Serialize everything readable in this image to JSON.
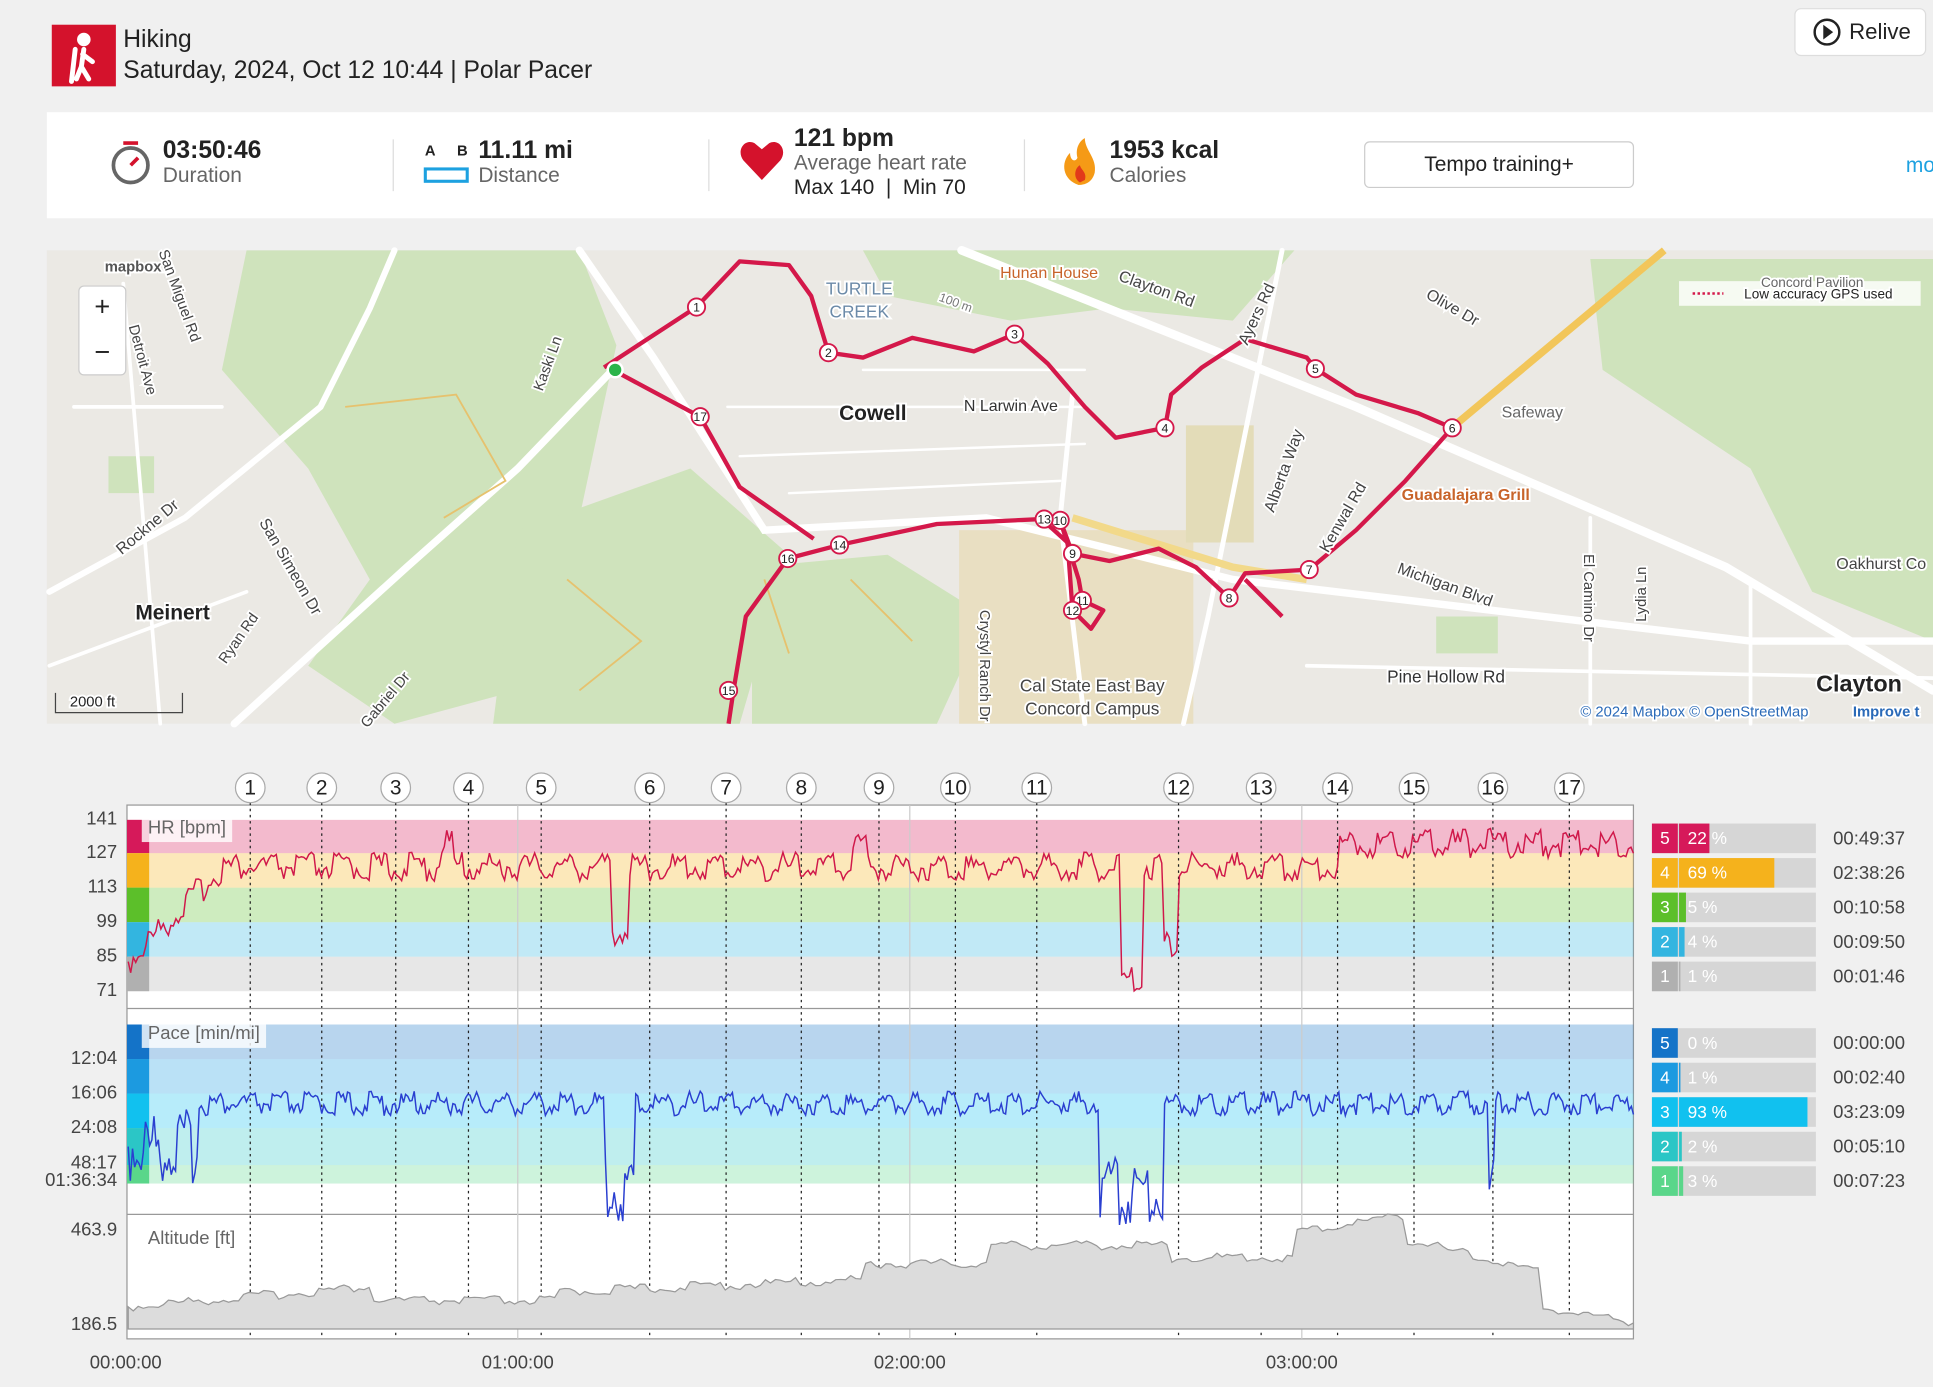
{
  "header": {
    "activity": "Hiking",
    "subtitle": "Saturday, 2024, Oct 12 10:44 | Polar Pacer",
    "relive": "Relive"
  },
  "summary": {
    "duration": "03:50:46",
    "duration_label": "Duration",
    "a": "A",
    "b": "B",
    "distance": "11.11 mi",
    "distance_label": "Distance",
    "hr": "121 bpm",
    "hr_label": "Average heart rate",
    "hr_range": "Max 140  |  Min 70",
    "calories": "1953 kcal",
    "calories_label": "Calories",
    "training": "Tempo training+",
    "more": "mo"
  },
  "map": {
    "labels": [
      "mapbox",
      "San Miguel Rd",
      "Detroit Ave",
      "Kaski Ln",
      "TURTLE",
      "CREEK",
      "100 m",
      "Hunan House",
      "Clayton Rd",
      "Ayers Rd",
      "Olive Dr",
      "Concord Pavilion",
      "Low accuracy GPS used",
      "Cowell",
      "N Larwin Ave",
      "Safeway",
      "Guadalajara Grill",
      "Alberta Way",
      "Kenwal Rd",
      "Michigan Blvd",
      "El Camino Dr",
      "Lydia Ln",
      "Oakhurst Co",
      "Rockne Dr",
      "San Simeon Dr",
      "Meinert",
      "Ryan Rd",
      "Gabriel Dr",
      "Crystyl Ranch Dr",
      "Cal State East Bay",
      "Concord Campus",
      "Pine Hollow Rd",
      "Clayton",
      "2000 ft",
      "© 2024 Mapbox © OpenStreetMap",
      "Improve t"
    ],
    "zoom_in": "+",
    "zoom_out": "−"
  },
  "laps": [
    "1",
    "2",
    "3",
    "4",
    "5",
    "6",
    "7",
    "8",
    "9",
    "10",
    "11",
    "12",
    "13",
    "14",
    "15",
    "16",
    "17"
  ],
  "hr_chart": {
    "label": "HR [bpm]",
    "yticks": [
      141,
      127,
      113,
      99,
      85,
      71
    ]
  },
  "pace_chart": {
    "label": "Pace [min/mi]",
    "yticks": [
      "12:04",
      "16:06",
      "24:08",
      "48:17",
      "01:36:34"
    ]
  },
  "altitude_chart": {
    "label": "Altitude [ft]",
    "yticks": [
      "463.9",
      "186.5"
    ]
  },
  "time_ticks": [
    "00:00:00",
    "01:00:00",
    "02:00:00",
    "03:00:00"
  ],
  "hr_zones": [
    {
      "zone": "5",
      "percent": 22,
      "percent_label": "22 %",
      "time": "00:49:37",
      "color": "#d6195a"
    },
    {
      "zone": "4",
      "percent": 69,
      "percent_label": "69 %",
      "time": "02:38:26",
      "color": "#f5b21c"
    },
    {
      "zone": "3",
      "percent": 5,
      "percent_label": "5 %",
      "time": "00:10:58",
      "color": "#5cbf2a"
    },
    {
      "zone": "2",
      "percent": 4,
      "percent_label": "4 %",
      "time": "00:09:50",
      "color": "#33b5e0"
    },
    {
      "zone": "1",
      "percent": 1,
      "percent_label": "1 %",
      "time": "00:01:46",
      "color": "#b0b0b0"
    }
  ],
  "pace_zones": [
    {
      "zone": "5",
      "percent": 0,
      "percent_label": "0 %",
      "time": "00:00:00",
      "color": "#1473c8"
    },
    {
      "zone": "4",
      "percent": 1,
      "percent_label": "1 %",
      "time": "00:02:40",
      "color": "#1c9ae0"
    },
    {
      "zone": "3",
      "percent": 93,
      "percent_label": "93 %",
      "time": "03:23:09",
      "color": "#11c1ef"
    },
    {
      "zone": "2",
      "percent": 2,
      "percent_label": "2 %",
      "time": "00:05:10",
      "color": "#2bc6c6"
    },
    {
      "zone": "1",
      "percent": 3,
      "percent_label": "3 %",
      "time": "00:07:23",
      "color": "#5ad68a"
    }
  ]
}
